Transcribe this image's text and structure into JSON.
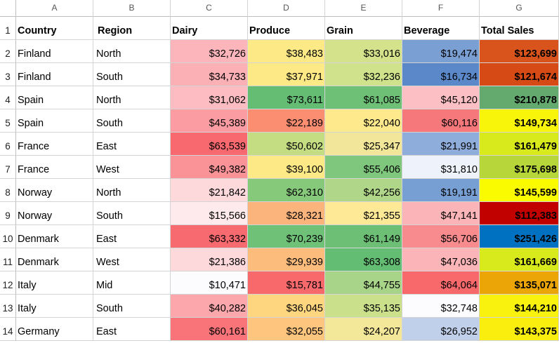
{
  "columns": [
    "A",
    "B",
    "C",
    "D",
    "E",
    "F",
    "G"
  ],
  "headers": [
    "Country",
    "Region",
    "Dairy",
    "Produce",
    "Grain",
    "Beverage",
    "Total Sales"
  ],
  "rows": [
    {
      "num": "2",
      "country": "Finland",
      "region": "North",
      "values": [
        "$32,726",
        "$38,483",
        "$33,016",
        "$19,474",
        "$123,699"
      ],
      "colors": [
        "#fcb6bb",
        "#fde985",
        "#d4e28c",
        "#7a9fd2",
        "#d9541c"
      ]
    },
    {
      "num": "3",
      "country": "Finland",
      "region": "South",
      "values": [
        "$34,733",
        "$37,971",
        "$32,236",
        "$16,734",
        "$121,674"
      ],
      "colors": [
        "#fbb0b5",
        "#fde985",
        "#d1e28c",
        "#5a88c9",
        "#d64a16"
      ]
    },
    {
      "num": "4",
      "country": "Spain",
      "region": "North",
      "values": [
        "$31,062",
        "$73,611",
        "$61,085",
        "$45,120",
        "$210,878"
      ],
      "colors": [
        "#fcbcc1",
        "#65bd74",
        "#6dc075",
        "#fcbfc4",
        "#64a96e"
      ]
    },
    {
      "num": "5",
      "country": "Spain",
      "region": "South",
      "values": [
        "$45,389",
        "$22,189",
        "$22,040",
        "$60,116",
        "$149,734"
      ],
      "colors": [
        "#fa9ca1",
        "#fb8e71",
        "#feea8d",
        "#f6787b",
        "#f8f40a"
      ]
    },
    {
      "num": "6",
      "country": "France",
      "region": "East",
      "values": [
        "$63,539",
        "$50,602",
        "$25,347",
        "$21,991",
        "$161,479"
      ],
      "colors": [
        "#f7696e",
        "#c5dd82",
        "#f1e69a",
        "#8eadda",
        "#d9ea1c"
      ]
    },
    {
      "num": "7",
      "country": "France",
      "region": "West",
      "values": [
        "$49,382",
        "$39,100",
        "$55,406",
        "$31,810",
        "$175,698"
      ],
      "colors": [
        "#fa9397",
        "#fde985",
        "#7ec77c",
        "#eef2fa",
        "#b6d639"
      ]
    },
    {
      "num": "8",
      "country": "Norway",
      "region": "North",
      "values": [
        "$21,842",
        "$62,310",
        "$42,256",
        "$19,191",
        "$145,599"
      ],
      "colors": [
        "#fdd9dc",
        "#86c97b",
        "#b0d68a",
        "#789fd3",
        "#fbfb00"
      ]
    },
    {
      "num": "9",
      "country": "Norway",
      "region": "South",
      "values": [
        "$15,566",
        "$28,321",
        "$21,355",
        "$47,141",
        "$112,383"
      ],
      "colors": [
        "#feeaec",
        "#fbb47b",
        "#fee997",
        "#fbb5b8",
        "#c10000"
      ]
    },
    {
      "num": "10",
      "country": "Denmark",
      "region": "East",
      "values": [
        "$63,332",
        "$70,239",
        "$61,149",
        "$56,706",
        "$251,426"
      ],
      "colors": [
        "#f76a6f",
        "#6fc178",
        "#6dbf76",
        "#f88b8d",
        "#0070c0"
      ]
    },
    {
      "num": "11",
      "country": "Denmark",
      "region": "West",
      "values": [
        "$21,386",
        "$29,939",
        "$63,308",
        "$47,036",
        "$161,669"
      ],
      "colors": [
        "#fdd9dc",
        "#fcbc7c",
        "#63bd73",
        "#fbb5b8",
        "#d9ea1c"
      ]
    },
    {
      "num": "12",
      "country": "Italy",
      "region": "Mid",
      "values": [
        "$10,471",
        "$15,781",
        "$44,755",
        "$64,064",
        "$135,071"
      ],
      "colors": [
        "#fcfcfe",
        "#f8696b",
        "#a8d48a",
        "#f8696b",
        "#eba507"
      ]
    },
    {
      "num": "13",
      "country": "Italy",
      "region": "South",
      "values": [
        "$40,282",
        "$36,045",
        "$35,135",
        "$32,748",
        "$144,210"
      ],
      "colors": [
        "#fba7ab",
        "#fed67f",
        "#cae08b",
        "#fcfcfe",
        "#f8f20e"
      ]
    },
    {
      "num": "14",
      "country": "Germany",
      "region": "East",
      "values": [
        "$60,161",
        "$32,055",
        "$24,207",
        "$26,952",
        "$143,375"
      ],
      "colors": [
        "#f87479",
        "#fdc57d",
        "#f3e79a",
        "#c0d0eb",
        "#faee0f"
      ]
    }
  ]
}
